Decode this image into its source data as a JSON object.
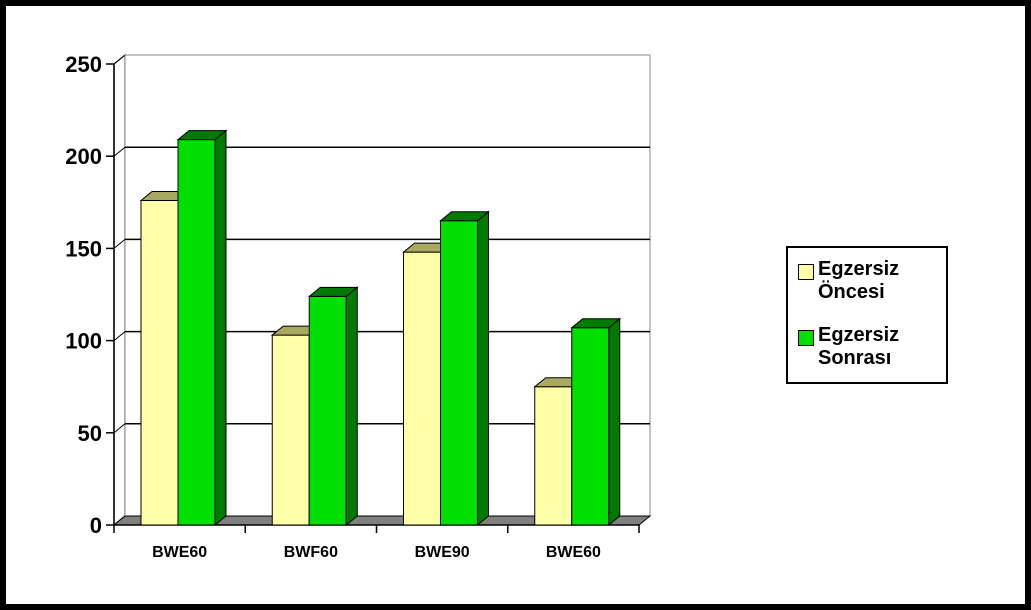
{
  "chart_data": {
    "type": "bar",
    "categories": [
      "BWE60",
      "BWF60",
      "BWE90",
      "BWE60"
    ],
    "series": [
      {
        "name": "Egzersiz Öncesi",
        "values": [
          176,
          103,
          148,
          75
        ],
        "color": "#FFFFA8",
        "side_color": "#A8A860"
      },
      {
        "name": "Egzersiz Sonrası",
        "values": [
          209,
          124,
          165,
          107
        ],
        "color": "#00E000",
        "side_color": "#007A00"
      }
    ],
    "ylim": [
      0,
      250
    ],
    "yticks": [
      "0",
      "50",
      "100",
      "150",
      "200",
      "250"
    ],
    "grid": true,
    "legend_position": "right",
    "style": "3d-clustered-column"
  }
}
